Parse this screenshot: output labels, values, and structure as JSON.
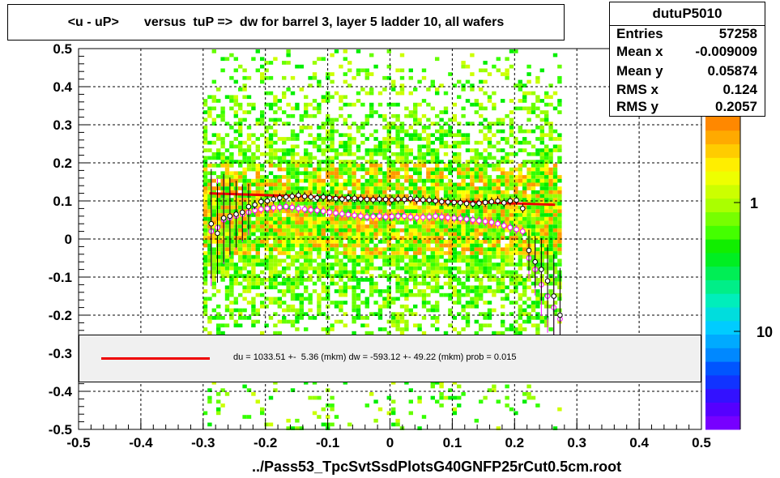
{
  "title": "<u - uP>       versus  tuP =>  dw for barrel 3, layer 5 ladder 10, all wafers",
  "stats": {
    "name": "dutuP5010",
    "rows": [
      {
        "label": "Entries",
        "value": "57258"
      },
      {
        "label": "Mean x",
        "value": "-0.009009"
      },
      {
        "label": "Mean y",
        "value": "0.05874"
      },
      {
        "label": "RMS x",
        "value": "0.124"
      },
      {
        "label": "RMS y",
        "value": "0.2057"
      }
    ]
  },
  "fit_text": "du = 1033.51 +-  5.36 (mkm) dw = -593.12 +- 49.22 (mkm) prob = 0.015",
  "filename": "../Pass53_TpcSvtSsdPlotsG40GNFP25rCut0.5cm.root",
  "colors": {
    "fit_line": "#ee0000",
    "profile_black": "#000000",
    "profile_magenta": "#ff00ff",
    "fit_box_bg": "#f0f0f0"
  },
  "chart_data": {
    "type": "heatmap",
    "title": "<u - uP>       versus  tuP =>  dw for barrel 3, layer 5 ladder 10, all wafers",
    "xlabel": "../Pass53_TpcSvtSsdPlotsG40GNFP25rCut0.5cm.root",
    "ylabel": "",
    "xlim": [
      -0.5,
      0.5
    ],
    "ylim": [
      -0.5,
      0.5
    ],
    "x_ticks": [
      "-0.5",
      "-0.4",
      "-0.3",
      "-0.2",
      "-0.1",
      "0",
      "0.1",
      "0.2",
      "0.3",
      "0.4",
      "0.5"
    ],
    "y_ticks": [
      "-0.5",
      "-0.4",
      "-0.3",
      "-0.2",
      "-0.1",
      "0",
      "0.1",
      "0.2",
      "0.3",
      "0.4",
      "0.5"
    ],
    "z_scale": "log",
    "z_ticks": [
      "1",
      "10"
    ],
    "grid": true,
    "density_x_range": [
      -0.3,
      0.27
    ],
    "profile_black": {
      "x": [
        -0.287,
        -0.277,
        -0.267,
        -0.257,
        -0.247,
        -0.237,
        -0.227,
        -0.217,
        -0.207,
        -0.197,
        -0.187,
        -0.177,
        -0.167,
        -0.157,
        -0.147,
        -0.137,
        -0.127,
        -0.117,
        -0.107,
        -0.097,
        -0.087,
        -0.077,
        -0.067,
        -0.057,
        -0.047,
        -0.037,
        -0.027,
        -0.017,
        -0.007,
        0.003,
        0.013,
        0.023,
        0.033,
        0.043,
        0.053,
        0.063,
        0.073,
        0.083,
        0.093,
        0.103,
        0.113,
        0.123,
        0.133,
        0.143,
        0.153,
        0.163,
        0.173,
        0.183,
        0.193,
        0.203,
        0.213,
        0.223,
        0.233,
        0.243,
        0.253,
        0.263,
        0.273
      ],
      "y": [
        0.04,
        0.015,
        0.055,
        0.06,
        0.065,
        0.07,
        0.085,
        0.09,
        0.098,
        0.1,
        0.105,
        0.108,
        0.11,
        0.112,
        0.115,
        0.112,
        0.11,
        0.108,
        0.11,
        0.108,
        0.106,
        0.105,
        0.108,
        0.107,
        0.105,
        0.104,
        0.103,
        0.105,
        0.104,
        0.103,
        0.105,
        0.104,
        0.106,
        0.104,
        0.103,
        0.102,
        0.1,
        0.098,
        0.097,
        0.096,
        0.095,
        0.093,
        0.092,
        0.094,
        0.096,
        0.098,
        0.1,
        0.095,
        0.1,
        0.102,
        0.08,
        -0.03,
        -0.06,
        -0.08,
        -0.11,
        -0.15,
        -0.2
      ]
    },
    "profile_magenta": {
      "x": [
        -0.287,
        -0.277,
        -0.267,
        -0.257,
        -0.247,
        -0.237,
        -0.227,
        -0.217,
        -0.207,
        -0.197,
        -0.187,
        -0.177,
        -0.167,
        -0.157,
        -0.147,
        -0.137,
        -0.127,
        -0.117,
        -0.107,
        -0.097,
        -0.087,
        -0.077,
        -0.067,
        -0.057,
        -0.047,
        -0.037,
        -0.027,
        -0.017,
        -0.007,
        0.003,
        0.013,
        0.023,
        0.033,
        0.043,
        0.053,
        0.063,
        0.073,
        0.083,
        0.093,
        0.103,
        0.113,
        0.123,
        0.133,
        0.143,
        0.153,
        0.163,
        0.173,
        0.183,
        0.193,
        0.203,
        0.213,
        0.223,
        0.233,
        0.243,
        0.253,
        0.263,
        0.273
      ],
      "y": [
        0.02,
        0.03,
        0.05,
        0.055,
        0.06,
        0.065,
        0.07,
        0.075,
        0.078,
        0.08,
        0.082,
        0.083,
        0.085,
        0.083,
        0.08,
        0.078,
        0.076,
        0.075,
        0.073,
        0.07,
        0.068,
        0.066,
        0.064,
        0.062,
        0.06,
        0.058,
        0.059,
        0.06,
        0.058,
        0.059,
        0.06,
        0.06,
        0.058,
        0.056,
        0.057,
        0.058,
        0.06,
        0.058,
        0.056,
        0.055,
        0.054,
        0.052,
        0.05,
        0.048,
        0.046,
        0.044,
        0.04,
        0.035,
        0.03,
        0.025,
        0.02,
        -0.05,
        -0.08,
        -0.12,
        -0.15,
        -0.18,
        -0.21
      ]
    },
    "fit_line": {
      "x": [
        -0.29,
        0.265
      ],
      "y": [
        0.12,
        0.09
      ]
    }
  }
}
